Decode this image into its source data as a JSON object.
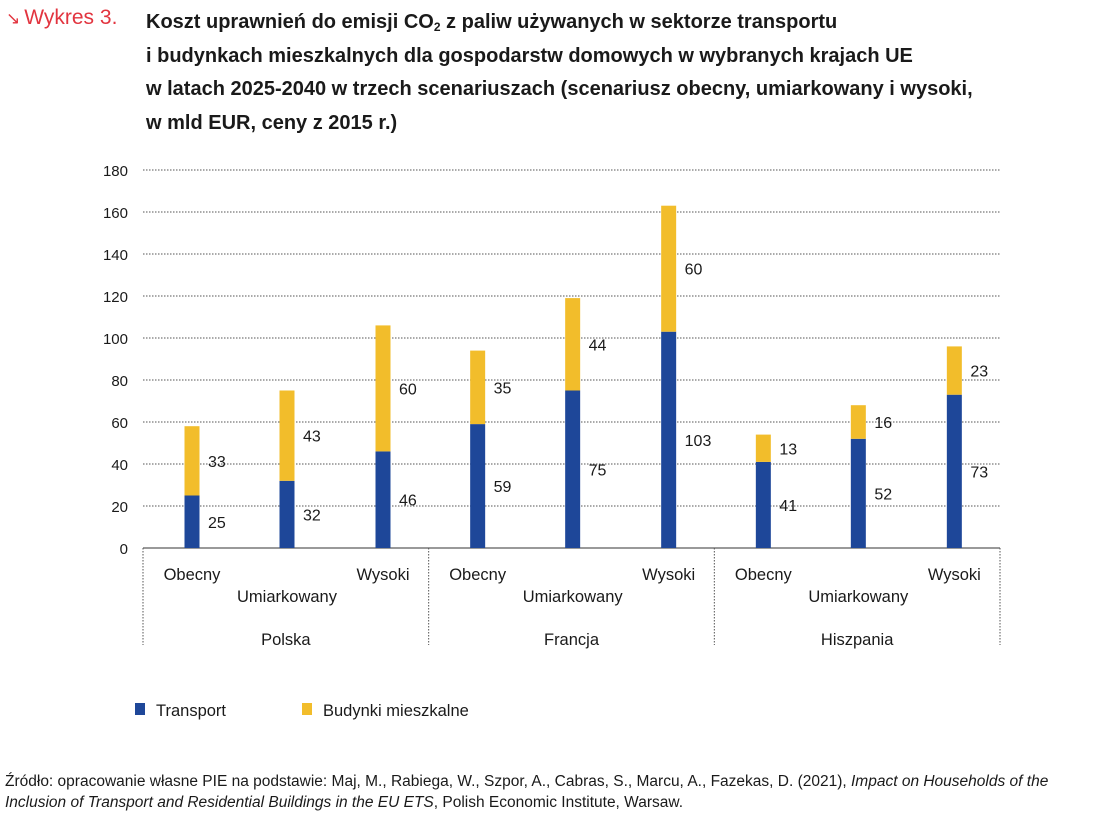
{
  "figure_label": "Wykres 3.",
  "title_lines": {
    "line1_pre": "Koszt uprawnień do emisji CO",
    "line1_sub": "2",
    "line1_post": " z paliw używanych w sektorze transportu",
    "line2": "i budynkach mieszkalnych dla gospodarstw domowych w wybranych krajach UE",
    "line3": "w latach 2025-2040 w trzech scenariuszach (scenariusz obecny, umiarkowany i wysoki,",
    "line4": "w mld EUR, ceny z 2015 r.)"
  },
  "source": {
    "lead": "Źródło: opracowanie własne PIE na podstawie: Maj, M., Rabiega, W., Szpor, A., Cabras, S., Marcu, A., Fazekas, D. (2021), ",
    "italic": "Impact on Households of the Inclusion of Transport and Residential Buildings in the EU ETS",
    "tail": ", Polish Economic Institute, Warsaw."
  },
  "colors": {
    "transport": "#1e4799",
    "budynki": "#f2bd2b",
    "accent": "#e2343f",
    "grid": "#555555"
  },
  "chart_data": {
    "type": "bar",
    "stacked": true,
    "ylim": [
      0,
      180
    ],
    "yticks": [
      0,
      20,
      40,
      60,
      80,
      100,
      120,
      140,
      160,
      180
    ],
    "groups": [
      {
        "name": "Polska",
        "scenarios": [
          "Obecny",
          "Umiarkowany",
          "Wysoki"
        ]
      },
      {
        "name": "Francja",
        "scenarios": [
          "Obecny",
          "Umiarkowany",
          "Wysoki"
        ]
      },
      {
        "name": "Hiszpania",
        "scenarios": [
          "Obecny",
          "Umiarkowany",
          "Wysoki"
        ]
      }
    ],
    "series": [
      {
        "name": "Transport",
        "values": [
          25,
          32,
          46,
          59,
          75,
          103,
          41,
          52,
          73
        ]
      },
      {
        "name": "Budynki mieszkalne",
        "values": [
          33,
          43,
          60,
          35,
          44,
          60,
          13,
          16,
          23
        ]
      }
    ],
    "legend": [
      "Transport",
      "Budynki mieszkalne"
    ],
    "grid": true
  }
}
